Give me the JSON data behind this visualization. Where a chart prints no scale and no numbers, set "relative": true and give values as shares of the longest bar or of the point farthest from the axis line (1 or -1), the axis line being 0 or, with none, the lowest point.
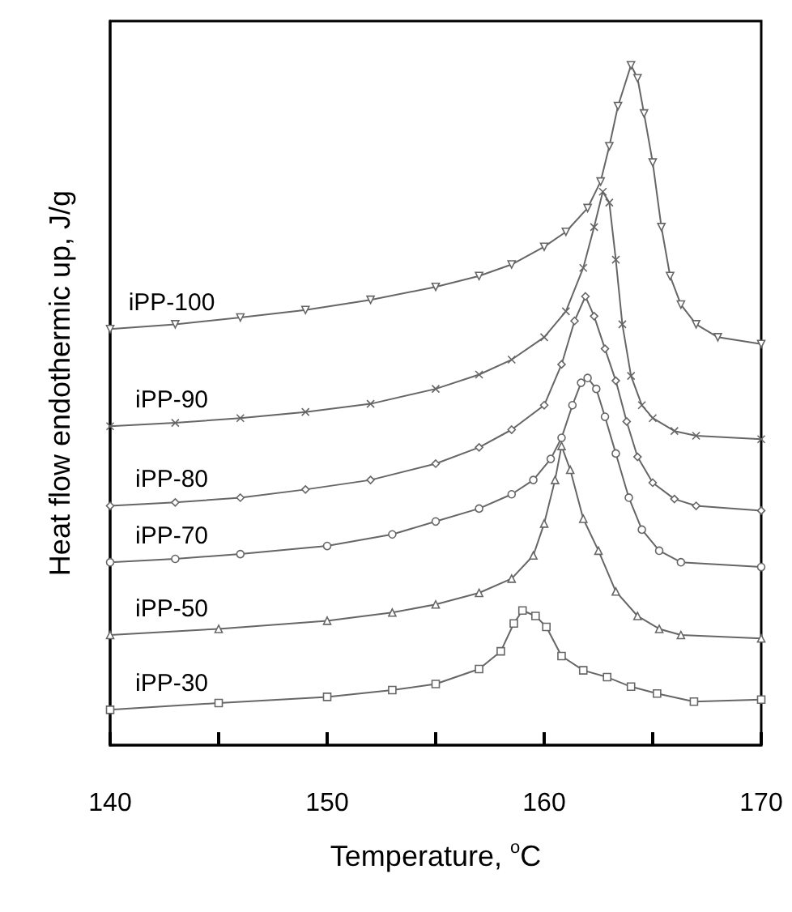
{
  "chart_data": {
    "type": "line",
    "relative": true,
    "xlabel": "Temperature, $^{o}$C",
    "ylabel": "Heat flow endothermic up, J/g",
    "xlim": [
      140,
      170
    ],
    "xticks": [
      140,
      {
        "value": 145,
        "label": null
      },
      150,
      {
        "value": 155,
        "label": null
      },
      160,
      {
        "value": 165,
        "label": null
      },
      170
    ],
    "grid": false,
    "legend": false,
    "tick_labels": "x",
    "line_style": "solid",
    "series": [
      {
        "name": "iPP-100",
        "color": "#666666",
        "marker": "triangle-down",
        "x": [
          140,
          143,
          146,
          149,
          152,
          155,
          157,
          158.5,
          160,
          161,
          162,
          162.6,
          163,
          163.4,
          164,
          164.3,
          164.6,
          165,
          165.4,
          165.8,
          166.3,
          167,
          168,
          170
        ],
        "values": [
          0.612,
          0.619,
          0.629,
          0.64,
          0.655,
          0.674,
          0.69,
          0.707,
          0.733,
          0.755,
          0.79,
          0.829,
          0.881,
          0.94,
          1,
          0.981,
          0.929,
          0.857,
          0.762,
          0.69,
          0.648,
          0.619,
          0.6,
          0.59
        ]
      },
      {
        "name": "iPP-90",
        "color": "#666666",
        "marker": "cross",
        "x": [
          140,
          143,
          146,
          149,
          152,
          155,
          157,
          158.5,
          160,
          161,
          161.8,
          162.3,
          162.7,
          163,
          163.3,
          163.6,
          164,
          164.5,
          165,
          166,
          167,
          170
        ],
        "values": [
          0.469,
          0.474,
          0.481,
          0.49,
          0.502,
          0.524,
          0.545,
          0.567,
          0.6,
          0.638,
          0.702,
          0.762,
          0.814,
          0.798,
          0.714,
          0.619,
          0.543,
          0.5,
          0.481,
          0.462,
          0.455,
          0.45
        ]
      },
      {
        "name": "iPP-80",
        "color": "#666666",
        "marker": "diamond",
        "x": [
          140,
          143,
          146,
          149,
          152,
          155,
          157,
          158.5,
          160,
          160.8,
          161.4,
          161.9,
          162.3,
          162.8,
          163.3,
          163.8,
          164.3,
          165,
          166,
          167,
          170
        ],
        "values": [
          0.352,
          0.357,
          0.364,
          0.376,
          0.39,
          0.414,
          0.438,
          0.464,
          0.5,
          0.56,
          0.624,
          0.66,
          0.631,
          0.583,
          0.536,
          0.476,
          0.424,
          0.386,
          0.362,
          0.352,
          0.345
        ]
      },
      {
        "name": "iPP-70",
        "color": "#666666",
        "marker": "circle",
        "x": [
          140,
          143,
          146,
          150,
          153,
          155,
          157,
          158.5,
          159.5,
          160.3,
          160.8,
          161.3,
          161.7,
          162,
          162.4,
          162.8,
          163.3,
          163.9,
          164.5,
          165.3,
          166.3,
          170
        ],
        "values": [
          0.269,
          0.274,
          0.281,
          0.293,
          0.31,
          0.329,
          0.348,
          0.369,
          0.39,
          0.421,
          0.452,
          0.5,
          0.533,
          0.54,
          0.524,
          0.483,
          0.429,
          0.364,
          0.317,
          0.286,
          0.269,
          0.262
        ]
      },
      {
        "name": "iPP-50",
        "color": "#666666",
        "marker": "triangle",
        "x": [
          140,
          145,
          150,
          153,
          155,
          157,
          158.5,
          159.5,
          160,
          160.5,
          160.8,
          161.2,
          161.8,
          162.5,
          163.3,
          164.3,
          165.3,
          166.3,
          170
        ],
        "values": [
          0.162,
          0.171,
          0.183,
          0.195,
          0.207,
          0.224,
          0.245,
          0.279,
          0.326,
          0.39,
          0.44,
          0.405,
          0.333,
          0.286,
          0.226,
          0.19,
          0.171,
          0.162,
          0.157
        ]
      },
      {
        "name": "iPP-30",
        "color": "#666666",
        "marker": "square",
        "x": [
          140,
          145,
          150,
          153,
          155,
          157,
          158,
          158.6,
          159,
          159.6,
          160.1,
          160.8,
          161.8,
          162.9,
          164,
          165.2,
          166.9,
          170
        ],
        "values": [
          0.052,
          0.062,
          0.071,
          0.081,
          0.09,
          0.112,
          0.138,
          0.179,
          0.198,
          0.19,
          0.174,
          0.131,
          0.11,
          0.1,
          0.086,
          0.076,
          0.064,
          0.067
        ]
      }
    ]
  }
}
